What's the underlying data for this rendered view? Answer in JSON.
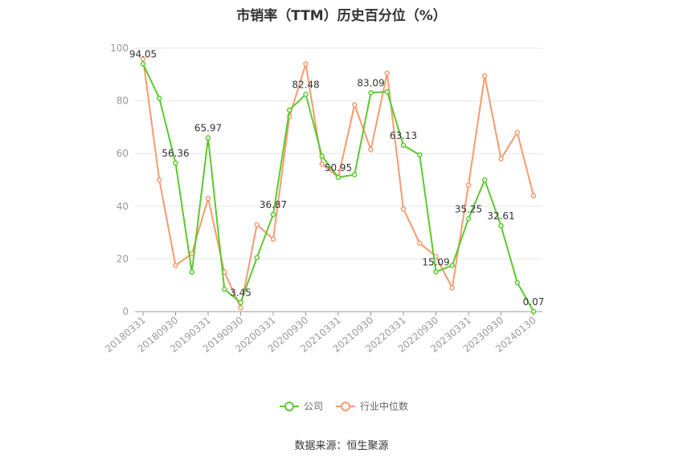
{
  "title": "市销率（TTM）历史百分位（%）",
  "source": "数据来源：恒生聚源",
  "colors": {
    "company": "#5cc92f",
    "industry": "#f59b6e"
  },
  "chart_data": {
    "type": "line",
    "title": "市销率（TTM）历史百分位（%）",
    "xlabel": "",
    "ylabel": "",
    "ylim": [
      0,
      100
    ],
    "yticks": [
      0,
      20,
      40,
      60,
      80,
      100
    ],
    "grid": true,
    "legend": "bottom-center",
    "x": [
      "20180331",
      "20180630",
      "20180930",
      "20181231",
      "20190331",
      "20190630",
      "20190930",
      "20191231",
      "20200331",
      "20200630",
      "20200930",
      "20201231",
      "20210331",
      "20210630",
      "20210930",
      "20211231",
      "20220331",
      "20220630",
      "20220930",
      "20221231",
      "20230331",
      "20230630",
      "20230930",
      "20231231",
      "20240130"
    ],
    "xtick_labels": [
      "20180331",
      "20180930",
      "20190331",
      "20190930",
      "20200331",
      "20200930",
      "20210331",
      "20210930",
      "20220331",
      "20220930",
      "20230331",
      "20230930",
      "20240130"
    ],
    "series": [
      {
        "name": "公司",
        "values": [
          94.05,
          81.0,
          56.36,
          15.0,
          65.97,
          8.5,
          3.45,
          20.5,
          36.87,
          76.5,
          82.48,
          59.0,
          50.95,
          52.0,
          83.09,
          83.5,
          63.13,
          59.5,
          15.09,
          17.5,
          35.25,
          50.0,
          32.61,
          11.0,
          0.07
        ],
        "labels": {
          "0": "94.05",
          "2": "56.36",
          "4": "65.97",
          "6": "3.45",
          "8": "36.87",
          "10": "82.48",
          "12": "50.95",
          "14": "83.09",
          "16": "63.13",
          "18": "15.09",
          "20": "35.25",
          "22": "32.61",
          "24": "0.07"
        }
      },
      {
        "name": "行业中位数",
        "values": [
          96.0,
          50.0,
          17.5,
          22.0,
          43.0,
          15.0,
          1.5,
          33.0,
          27.5,
          74.0,
          94.0,
          56.0,
          51.0,
          78.5,
          61.5,
          90.5,
          39.0,
          26.0,
          21.0,
          9.0,
          48.0,
          89.5,
          58.0,
          68.0,
          44.0
        ]
      }
    ]
  }
}
